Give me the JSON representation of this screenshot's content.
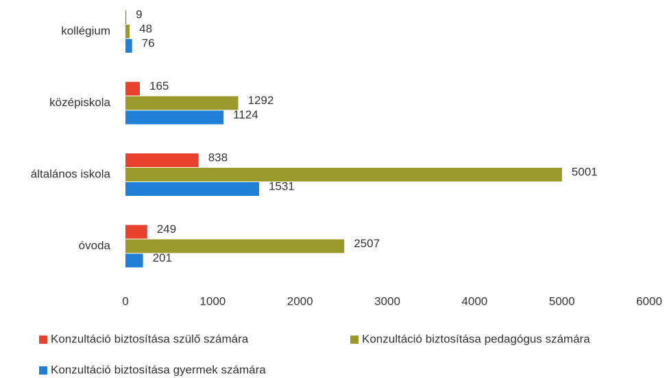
{
  "chart_data": {
    "type": "bar",
    "orientation": "horizontal",
    "categories": [
      "kollégium",
      "középiskola",
      "általános iskola",
      "óvoda"
    ],
    "series": [
      {
        "name": "Konzultáció biztosítása szülő számára",
        "color": "#e8412c",
        "values": [
          9,
          165,
          838,
          249
        ]
      },
      {
        "name": "Konzultáció biztosítása pedagógus számára",
        "color": "#9a9a2a",
        "values": [
          48,
          1292,
          5001,
          2507
        ]
      },
      {
        "name": "Konzultáció biztosítása gyermek számára",
        "color": "#1f7fd6",
        "values": [
          76,
          1124,
          1531,
          201
        ]
      }
    ],
    "xlim": [
      0,
      6000
    ],
    "xticks": [
      0,
      1000,
      2000,
      3000,
      4000,
      5000,
      6000
    ],
    "grid": false,
    "legend": "bottom"
  }
}
